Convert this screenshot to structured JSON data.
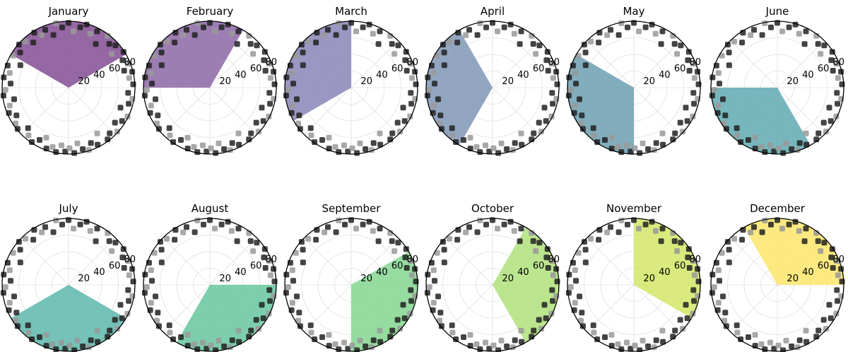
{
  "chart_data": {
    "type": "polar-scatter",
    "grid": true,
    "radial_ticks": [
      "20",
      "40",
      "60",
      "80"
    ],
    "rlim": [
      0,
      80
    ],
    "point_colors": {
      "current": "#222222",
      "other": "#999999"
    },
    "points": [
      {
        "theta": 3,
        "r": 78,
        "p": 1
      },
      {
        "theta": 9,
        "r": 74,
        "p": 0
      },
      {
        "theta": 14,
        "r": 79,
        "p": 1
      },
      {
        "theta": 17,
        "r": 70,
        "p": 1
      },
      {
        "theta": 22,
        "r": 77,
        "p": 0
      },
      {
        "theta": 27,
        "r": 73,
        "p": 1
      },
      {
        "theta": 33,
        "r": 79,
        "p": 1
      },
      {
        "theta": 38,
        "r": 66,
        "p": 0
      },
      {
        "theta": 42,
        "r": 76,
        "p": 1
      },
      {
        "theta": 47,
        "r": 72,
        "p": 1
      },
      {
        "theta": 53,
        "r": 78,
        "p": 0
      },
      {
        "theta": 58,
        "r": 62,
        "p": 1
      },
      {
        "theta": 63,
        "r": 76,
        "p": 1
      },
      {
        "theta": 68,
        "r": 70,
        "p": 0
      },
      {
        "theta": 74,
        "r": 79,
        "p": 1
      },
      {
        "theta": 79,
        "r": 74,
        "p": 1
      },
      {
        "theta": 85,
        "r": 68,
        "p": 0
      },
      {
        "theta": 90,
        "r": 78,
        "p": 1
      },
      {
        "theta": 96,
        "r": 73,
        "p": 1
      },
      {
        "theta": 101,
        "r": 79,
        "p": 0
      },
      {
        "theta": 106,
        "r": 66,
        "p": 1
      },
      {
        "theta": 112,
        "r": 75,
        "p": 1
      },
      {
        "theta": 117,
        "r": 71,
        "p": 0
      },
      {
        "theta": 122,
        "r": 78,
        "p": 1
      },
      {
        "theta": 128,
        "r": 69,
        "p": 1
      },
      {
        "theta": 133,
        "r": 76,
        "p": 0
      },
      {
        "theta": 139,
        "r": 79,
        "p": 1
      },
      {
        "theta": 144,
        "r": 72,
        "p": 1
      },
      {
        "theta": 150,
        "r": 77,
        "p": 0
      },
      {
        "theta": 155,
        "r": 64,
        "p": 1
      },
      {
        "theta": 160,
        "r": 78,
        "p": 1
      },
      {
        "theta": 166,
        "r": 73,
        "p": 0
      },
      {
        "theta": 171,
        "r": 79,
        "p": 1
      },
      {
        "theta": 176,
        "r": 70,
        "p": 1
      },
      {
        "theta": 182,
        "r": 76,
        "p": 0
      },
      {
        "theta": 187,
        "r": 79,
        "p": 1
      },
      {
        "theta": 192,
        "r": 67,
        "p": 1
      },
      {
        "theta": 197,
        "r": 74,
        "p": 0
      },
      {
        "theta": 203,
        "r": 78,
        "p": 1
      },
      {
        "theta": 208,
        "r": 71,
        "p": 1
      },
      {
        "theta": 214,
        "r": 77,
        "p": 0
      },
      {
        "theta": 219,
        "r": 79,
        "p": 1
      },
      {
        "theta": 225,
        "r": 69,
        "p": 1
      },
      {
        "theta": 230,
        "r": 75,
        "p": 0
      },
      {
        "theta": 236,
        "r": 79,
        "p": 1
      },
      {
        "theta": 241,
        "r": 72,
        "p": 1
      },
      {
        "theta": 246,
        "r": 66,
        "p": 0
      },
      {
        "theta": 250,
        "r": 78,
        "p": 1
      },
      {
        "theta": 255,
        "r": 74,
        "p": 0
      },
      {
        "theta": 259,
        "r": 79,
        "p": 1
      },
      {
        "theta": 263,
        "r": 70,
        "p": 0
      },
      {
        "theta": 267,
        "r": 77,
        "p": 1
      },
      {
        "theta": 271,
        "r": 73,
        "p": 0
      },
      {
        "theta": 275,
        "r": 79,
        "p": 1
      },
      {
        "theta": 279,
        "r": 68,
        "p": 0
      },
      {
        "theta": 283,
        "r": 76,
        "p": 1
      },
      {
        "theta": 288,
        "r": 79,
        "p": 0
      },
      {
        "theta": 292,
        "r": 72,
        "p": 1
      },
      {
        "theta": 297,
        "r": 77,
        "p": 1
      },
      {
        "theta": 302,
        "r": 65,
        "p": 0
      },
      {
        "theta": 307,
        "r": 78,
        "p": 1
      },
      {
        "theta": 312,
        "r": 74,
        "p": 1
      },
      {
        "theta": 318,
        "r": 79,
        "p": 0
      },
      {
        "theta": 323,
        "r": 70,
        "p": 1
      },
      {
        "theta": 328,
        "r": 76,
        "p": 1
      },
      {
        "theta": 334,
        "r": 79,
        "p": 0
      },
      {
        "theta": 339,
        "r": 67,
        "p": 1
      },
      {
        "theta": 345,
        "r": 75,
        "p": 1
      },
      {
        "theta": 350,
        "r": 78,
        "p": 0
      },
      {
        "theta": 355,
        "r": 72,
        "p": 1
      }
    ],
    "panels": [
      {
        "title": "January",
        "color": "#834e94",
        "wedge": [
          30,
          150
        ]
      },
      {
        "title": "February",
        "color": "#8c67a6",
        "wedge": [
          60,
          180
        ]
      },
      {
        "title": "March",
        "color": "#8a85b8",
        "wedge": [
          90,
          210
        ]
      },
      {
        "title": "April",
        "color": "#7f97b6",
        "wedge": [
          120,
          240
        ]
      },
      {
        "title": "May",
        "color": "#6c9fb0",
        "wedge": [
          150,
          270
        ]
      },
      {
        "title": "June",
        "color": "#5fa9b2",
        "wedge": [
          180,
          300
        ]
      },
      {
        "title": "July",
        "color": "#5cb7ab",
        "wedge": [
          210,
          330
        ]
      },
      {
        "title": "August",
        "color": "#66c69f",
        "wedge": [
          240,
          360
        ]
      },
      {
        "title": "September",
        "color": "#84d690",
        "wedge": [
          270,
          390
        ]
      },
      {
        "title": "October",
        "color": "#b0e07b",
        "wedge": [
          300,
          420
        ]
      },
      {
        "title": "November",
        "color": "#d4e667",
        "wedge": [
          330,
          450
        ]
      },
      {
        "title": "December",
        "color": "#fce66a",
        "wedge": [
          0,
          120
        ]
      }
    ]
  }
}
